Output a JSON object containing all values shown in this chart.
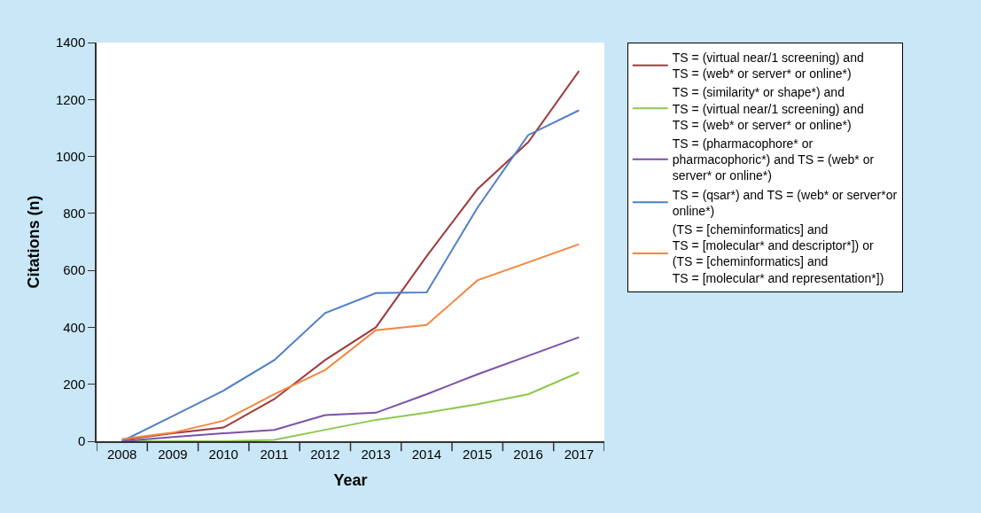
{
  "chart_data": {
    "type": "line",
    "xlabel": "Year",
    "ylabel": "Citations (n)",
    "categories": [
      "2008",
      "2009",
      "2010",
      "2011",
      "2012",
      "2013",
      "2014",
      "2015",
      "2016",
      "2017"
    ],
    "ylim": [
      0,
      1400
    ],
    "yticks": [
      0,
      200,
      400,
      600,
      800,
      1000,
      1200,
      1400
    ],
    "legend": "right",
    "marker": "none",
    "line_style": "solid",
    "series": [
      {
        "name": "TS = (virtual near/1 screening) and\nTS = (web* or server* or online*)",
        "color": "#9e3b3d",
        "values": [
          5,
          28,
          48,
          148,
          285,
          400,
          650,
          885,
          1050,
          1300
        ]
      },
      {
        "name": "TS = (similarity* or shape*) and\nTS = (virtual near/1 screening) and\nTS = (web* or server* or online*)",
        "color": "#8cc84b",
        "values": [
          0,
          0,
          0,
          5,
          40,
          75,
          100,
          130,
          165,
          242
        ]
      },
      {
        "name": "TS = (pharmacophore* or\npharmacophoric*) and TS = (web* or\nserver* or online*)",
        "color": "#7b50a8",
        "values": [
          0,
          15,
          28,
          40,
          92,
          100,
          165,
          235,
          300,
          365
        ]
      },
      {
        "name": "TS = (qsar*) and TS = (web* or server*or\nonline*)",
        "color": "#4f7fc7",
        "values": [
          0,
          88,
          178,
          285,
          450,
          520,
          523,
          820,
          1075,
          1162
        ]
      },
      {
        "name": "(TS = [cheminformatics] and\nTS = [molecular* and descriptor*]) or\n(TS = [cheminformatics] and\nTS = [molecular* and representation*])",
        "color": "#f5853f",
        "values": [
          8,
          30,
          72,
          165,
          250,
          390,
          408,
          565,
          628,
          692
        ]
      }
    ]
  }
}
